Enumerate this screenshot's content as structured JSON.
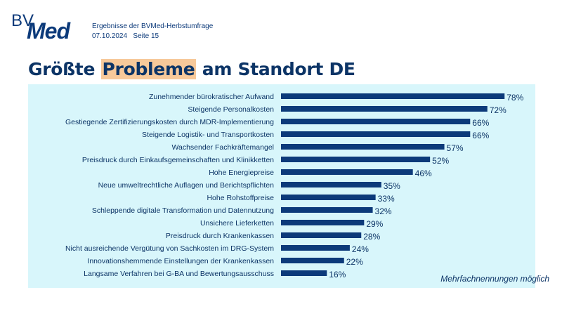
{
  "header": {
    "logo_text": "BVMed",
    "subtitle": "Ergebnisse der BVMed-Herbstumfrage",
    "date": "07.10.2024",
    "page": "Seite 15"
  },
  "title": {
    "before": "Größte ",
    "highlight": "Probleme",
    "after": " am Standort DE"
  },
  "note": "Mehrfachnennungen möglich",
  "colors": {
    "bar": "#0c3a7a",
    "panel": "#d8f6fb",
    "highlight": "#f7c99a"
  },
  "chart_data": {
    "type": "bar",
    "orientation": "horizontal",
    "unit": "%",
    "xlim": [
      0,
      100
    ],
    "grid": false,
    "categories": [
      "Zunehmender bürokratischer Aufwand",
      "Steigende Personalkosten",
      "Gestiegende Zertifizierungskosten durch MDR-Implementierung",
      "Steigende Logistik- und Transportkosten",
      "Wachsender Fachkräftemangel",
      "Preisdruck durch Einkaufsgemeinschaften und Klinikketten",
      "Hohe Energiepreise",
      "Neue umweltrechtliche Auflagen und Berichtspflichten",
      "Hohe Rohstoffpreise",
      "Schleppende digitale Transformation und Datennutzung",
      "Unsichere Lieferketten",
      "Preisdruck durch Krankenkassen",
      "Nicht ausreichende Vergütung von Sachkosten im DRG-System",
      "Innovationshemmende Einstellungen der Krankenkassen",
      "Langsame Verfahren bei G-BA und Bewertungsausschuss"
    ],
    "values": [
      78,
      72,
      66,
      66,
      57,
      52,
      46,
      35,
      33,
      32,
      29,
      28,
      24,
      22,
      16
    ]
  }
}
